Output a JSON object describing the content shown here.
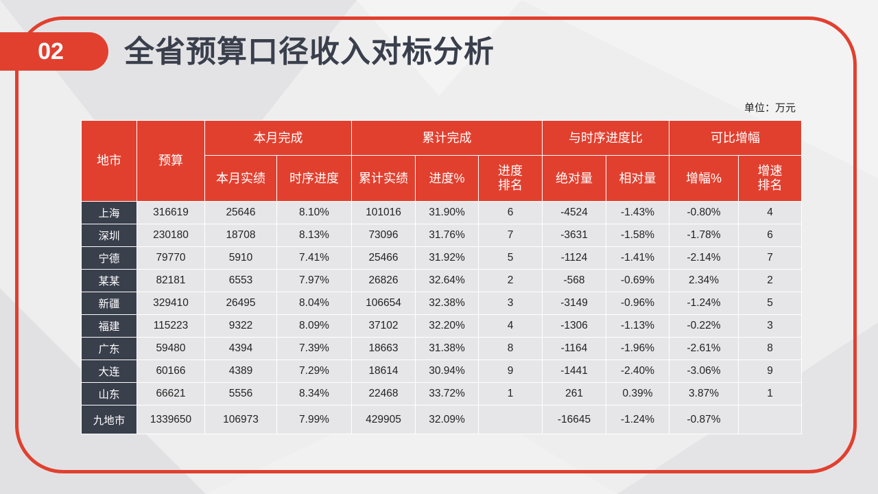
{
  "slide": {
    "number": "02",
    "title": "全省预算口径收入对标分析",
    "unit": "单位：万元"
  },
  "colors": {
    "accent": "#e1402f",
    "dark": "#3a3f4c",
    "cell": "#e6e6e8"
  },
  "table": {
    "header_groups": {
      "city": "地市",
      "budget": "预算",
      "month": "本月完成",
      "cumulative": "累计完成",
      "progress_compare": "与时序进度比",
      "growth": "可比增幅"
    },
    "sub_headers": {
      "month_actual": "本月实绩",
      "time_progress": "时序进度",
      "cum_actual": "累计实绩",
      "progress_pct": "进度%",
      "progress_rank": "进度排名",
      "absolute": "绝对量",
      "relative": "相对量",
      "growth_pct": "增幅%",
      "growth_rank": "增速排名"
    },
    "rows": [
      {
        "city": "上海",
        "budget": "316619",
        "month_actual": "25646",
        "time_progress": "8.10%",
        "cum_actual": "101016",
        "progress_pct": "31.90%",
        "progress_rank": "6",
        "absolute": "-4524",
        "relative": "-1.43%",
        "growth_pct": "-0.80%",
        "growth_rank": "4"
      },
      {
        "city": "深圳",
        "budget": "230180",
        "month_actual": "18708",
        "time_progress": "8.13%",
        "cum_actual": "73096",
        "progress_pct": "31.76%",
        "progress_rank": "7",
        "absolute": "-3631",
        "relative": "-1.58%",
        "growth_pct": "-1.78%",
        "growth_rank": "6"
      },
      {
        "city": "宁德",
        "budget": "79770",
        "month_actual": "5910",
        "time_progress": "7.41%",
        "cum_actual": "25466",
        "progress_pct": "31.92%",
        "progress_rank": "5",
        "absolute": "-1124",
        "relative": "-1.41%",
        "growth_pct": "-2.14%",
        "growth_rank": "7"
      },
      {
        "city": "某某",
        "budget": "82181",
        "month_actual": "6553",
        "time_progress": "7.97%",
        "cum_actual": "26826",
        "progress_pct": "32.64%",
        "progress_rank": "2",
        "absolute": "-568",
        "relative": "-0.69%",
        "growth_pct": "2.34%",
        "growth_rank": "2"
      },
      {
        "city": "新疆",
        "budget": "329410",
        "month_actual": "26495",
        "time_progress": "8.04%",
        "cum_actual": "106654",
        "progress_pct": "32.38%",
        "progress_rank": "3",
        "absolute": "-3149",
        "relative": "-0.96%",
        "growth_pct": "-1.24%",
        "growth_rank": "5"
      },
      {
        "city": "福建",
        "budget": "115223",
        "month_actual": "9322",
        "time_progress": "8.09%",
        "cum_actual": "37102",
        "progress_pct": "32.20%",
        "progress_rank": "4",
        "absolute": "-1306",
        "relative": "-1.13%",
        "growth_pct": "-0.22%",
        "growth_rank": "3"
      },
      {
        "city": "广东",
        "budget": "59480",
        "month_actual": "4394",
        "time_progress": "7.39%",
        "cum_actual": "18663",
        "progress_pct": "31.38%",
        "progress_rank": "8",
        "absolute": "-1164",
        "relative": "-1.96%",
        "growth_pct": "-2.61%",
        "growth_rank": "8"
      },
      {
        "city": "大连",
        "budget": "60166",
        "month_actual": "4389",
        "time_progress": "7.29%",
        "cum_actual": "18614",
        "progress_pct": "30.94%",
        "progress_rank": "9",
        "absolute": "-1441",
        "relative": "-2.40%",
        "growth_pct": "-3.06%",
        "growth_rank": "9"
      },
      {
        "city": "山东",
        "budget": "66621",
        "month_actual": "5556",
        "time_progress": "8.34%",
        "cum_actual": "22468",
        "progress_pct": "33.72%",
        "progress_rank": "1",
        "absolute": "261",
        "relative": "0.39%",
        "growth_pct": "3.87%",
        "growth_rank": "1"
      }
    ],
    "total": {
      "city": "九地市",
      "budget": "1339650",
      "month_actual": "106973",
      "time_progress": "7.99%",
      "cum_actual": "429905",
      "progress_pct": "32.09%",
      "progress_rank": "",
      "absolute": "-16645",
      "relative": "-1.24%",
      "growth_pct": "-0.87%",
      "growth_rank": ""
    }
  }
}
